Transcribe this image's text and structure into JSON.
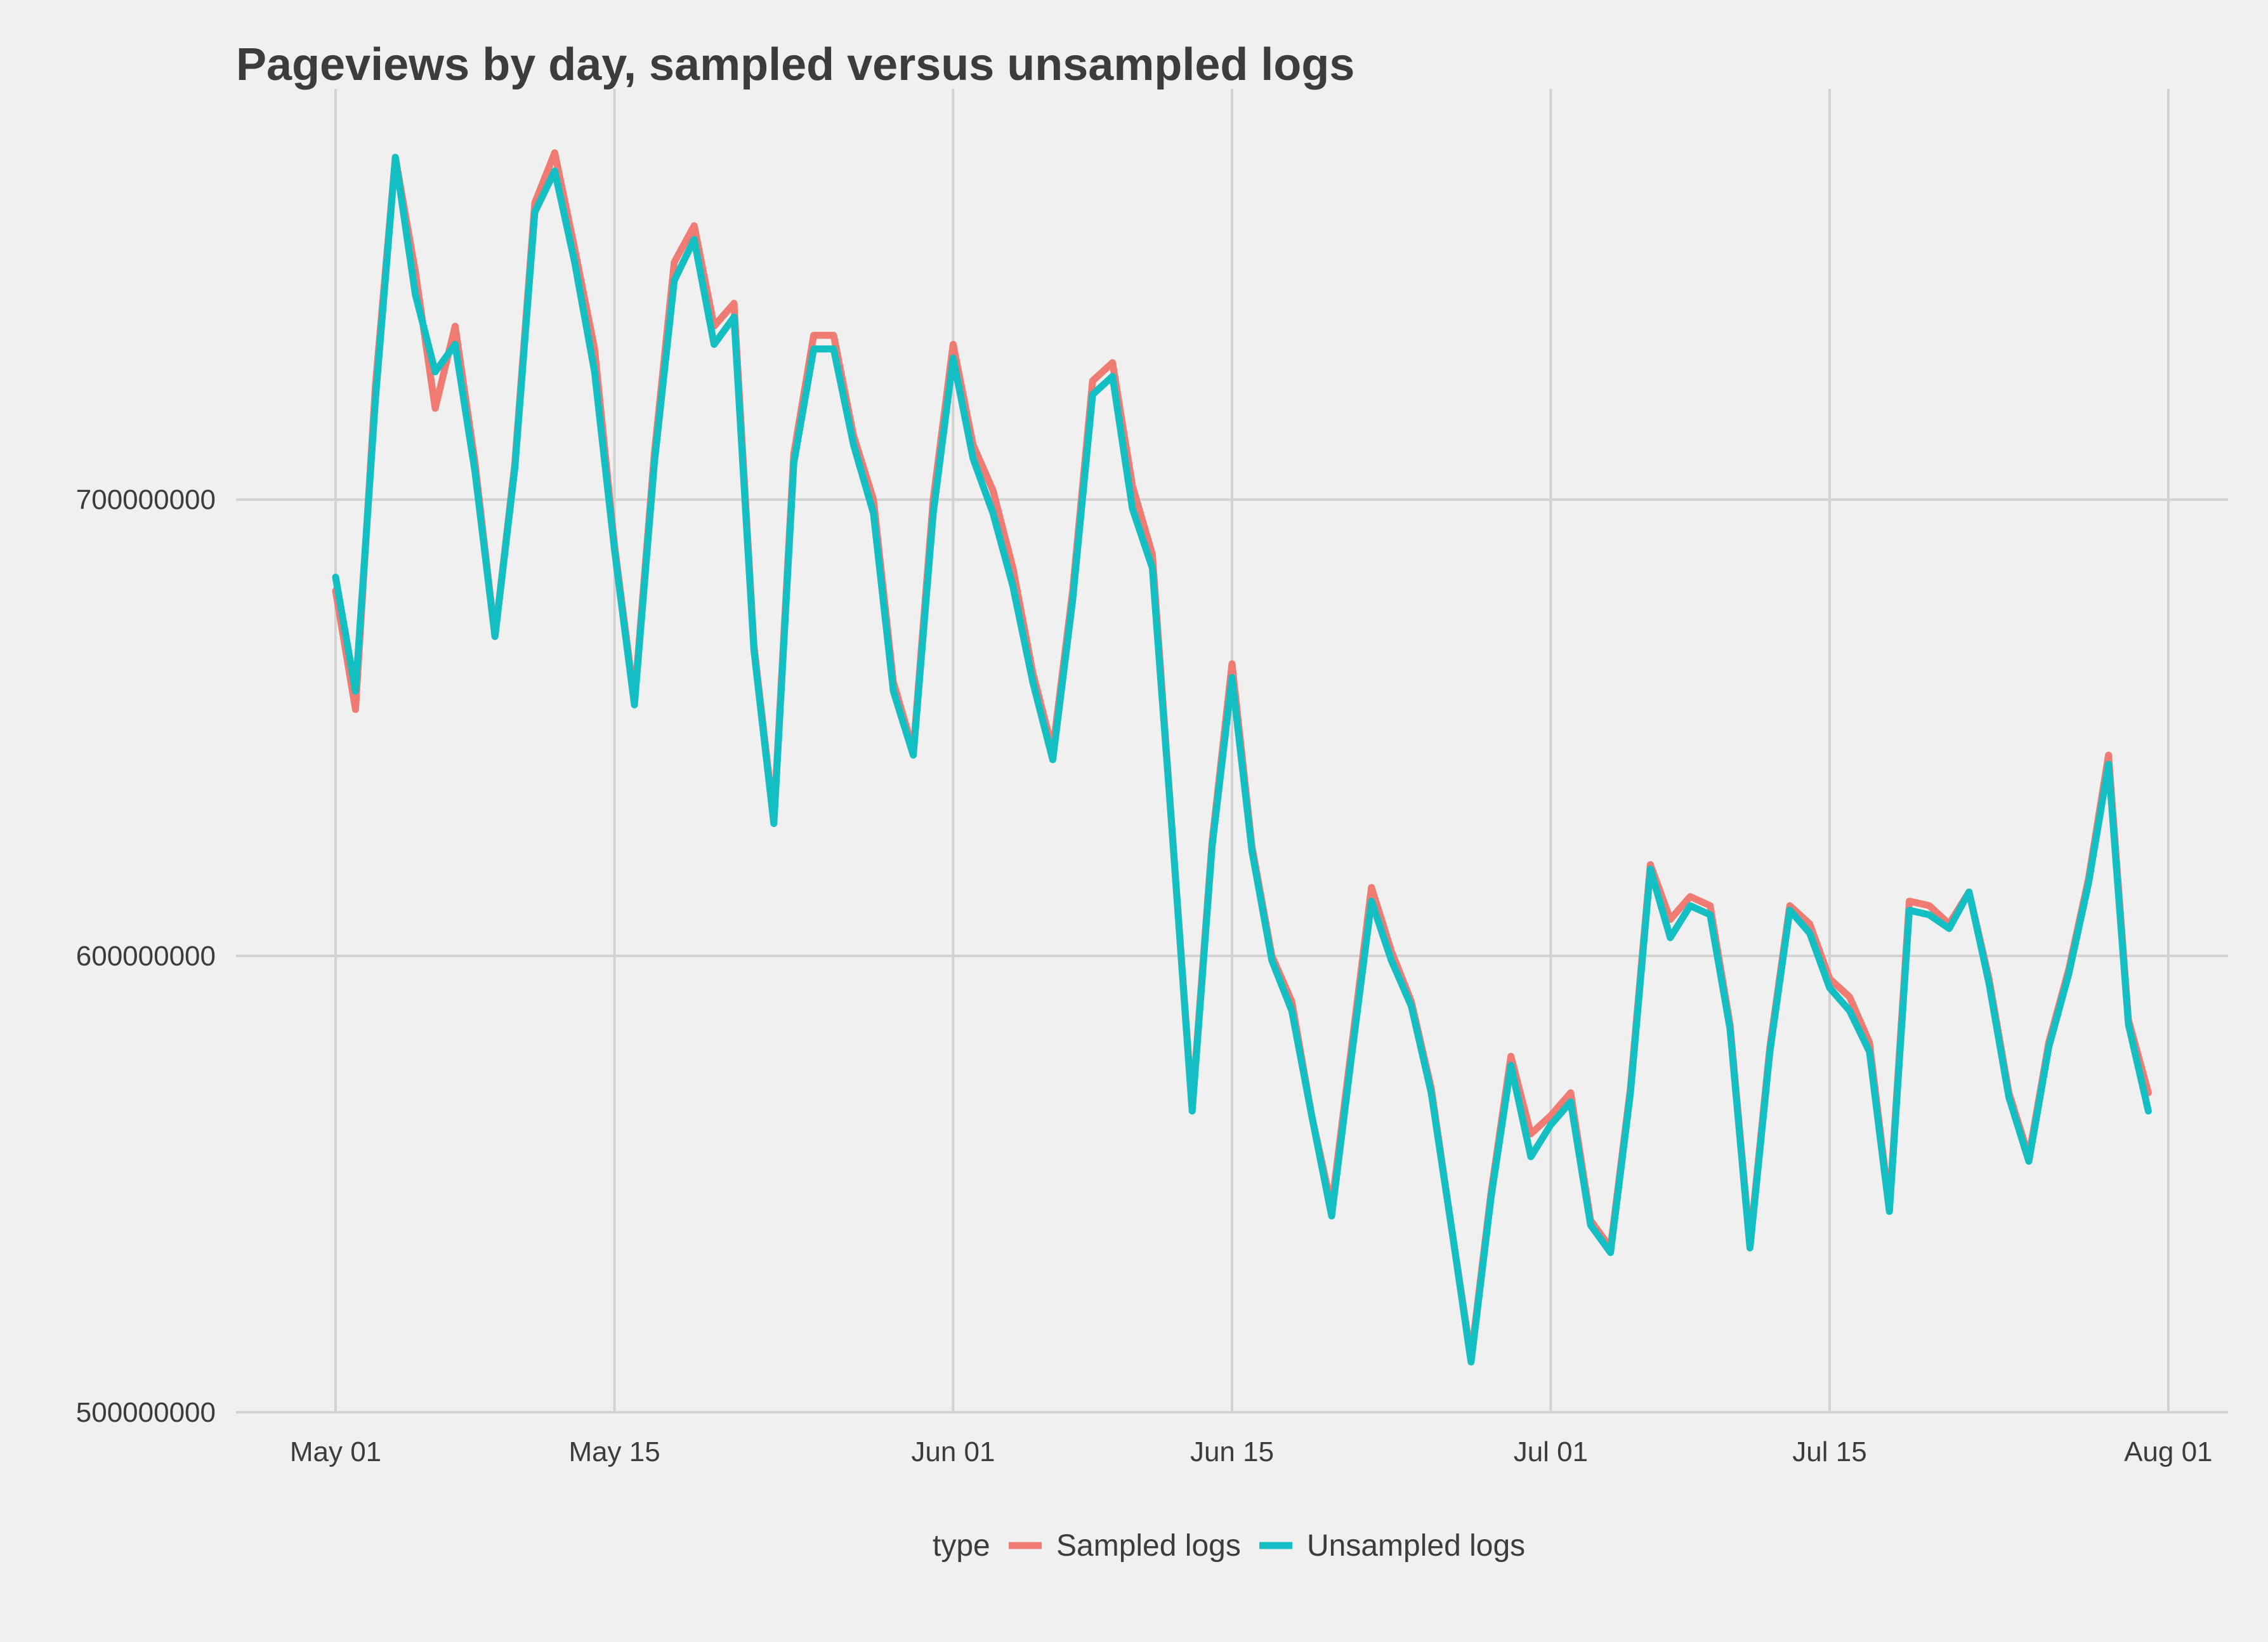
{
  "chart_data": {
    "type": "line",
    "title": "Pageviews by day, sampled versus unsampled logs",
    "xlabel": "",
    "ylabel": "",
    "x_start": "2015-05-01",
    "x_ticks": [
      {
        "date": "2015-05-01",
        "label": "May 01"
      },
      {
        "date": "2015-05-15",
        "label": "May 15"
      },
      {
        "date": "2015-06-01",
        "label": "Jun 01"
      },
      {
        "date": "2015-06-15",
        "label": "Jun 15"
      },
      {
        "date": "2015-07-01",
        "label": "Jul 01"
      },
      {
        "date": "2015-07-15",
        "label": "Jul 15"
      },
      {
        "date": "2015-08-01",
        "label": "Aug 01"
      }
    ],
    "xlim": [
      "2015-04-26",
      "2015-08-04"
    ],
    "y_ticks": [
      {
        "value": 500000000,
        "label": "500000000"
      },
      {
        "value": 600000000,
        "label": "600000000"
      },
      {
        "value": 700000000,
        "label": "700000000"
      }
    ],
    "ylim": [
      500000000,
      790000000
    ],
    "grid": true,
    "legend": {
      "title": "type",
      "position": "bottom"
    },
    "series": [
      {
        "name": "Sampled logs",
        "color": "#f07b72",
        "values": [
          680000000,
          654000000,
          725000000,
          775000000,
          750000000,
          720000000,
          738000000,
          708000000,
          670000000,
          708000000,
          765000000,
          776000000,
          755000000,
          733000000,
          690000000,
          656000000,
          710000000,
          752000000,
          760000000,
          738000000,
          743000000,
          668000000,
          630000000,
          710000000,
          736000000,
          736000000,
          714000000,
          700000000,
          660000000,
          645000000,
          700000000,
          734000000,
          712000000,
          702000000,
          685000000,
          662000000,
          645000000,
          680000000,
          726000000,
          730000000,
          703000000,
          688000000,
          627000000,
          567000000,
          625000000,
          664000000,
          624000000,
          600000000,
          590000000,
          565000000,
          545000000,
          580000000,
          615000000,
          601000000,
          590000000,
          571000000,
          541000000,
          512000000,
          548000000,
          578000000,
          561000000,
          565000000,
          570000000,
          542000000,
          536000000,
          571000000,
          620000000,
          608000000,
          613000000,
          611000000,
          585000000,
          537000000,
          580000000,
          611000000,
          607000000,
          595000000,
          591000000,
          581000000,
          545000000,
          612000000,
          611000000,
          607000000,
          614000000,
          595000000,
          570000000,
          556000000,
          581000000,
          597000000,
          617000000,
          644000000,
          586000000,
          570000000
        ]
      },
      {
        "name": "Unsampled logs",
        "color": "#13bfc2",
        "values": [
          683000000,
          658000000,
          722000000,
          775000000,
          745000000,
          728000000,
          734000000,
          706000000,
          670000000,
          707000000,
          763000000,
          772000000,
          752000000,
          728000000,
          689000000,
          655000000,
          708000000,
          748000000,
          757000000,
          734000000,
          740000000,
          667000000,
          629000000,
          708000000,
          733000000,
          733000000,
          712000000,
          697000000,
          658000000,
          644000000,
          697000000,
          731000000,
          709000000,
          697000000,
          681000000,
          660000000,
          643000000,
          678000000,
          723000000,
          727000000,
          698000000,
          685000000,
          627000000,
          566000000,
          624000000,
          661000000,
          623000000,
          599000000,
          588000000,
          565000000,
          543000000,
          578000000,
          612000000,
          599000000,
          589000000,
          570000000,
          541000000,
          511000000,
          547000000,
          576000000,
          556000000,
          563000000,
          568000000,
          541000000,
          535000000,
          570000000,
          619000000,
          604000000,
          611000000,
          609000000,
          584000000,
          536000000,
          579000000,
          610000000,
          605000000,
          593000000,
          588000000,
          579000000,
          544000000,
          610000000,
          609000000,
          606000000,
          614000000,
          594000000,
          569000000,
          555000000,
          580000000,
          596000000,
          616000000,
          642000000,
          585000000,
          566000000
        ]
      }
    ]
  }
}
